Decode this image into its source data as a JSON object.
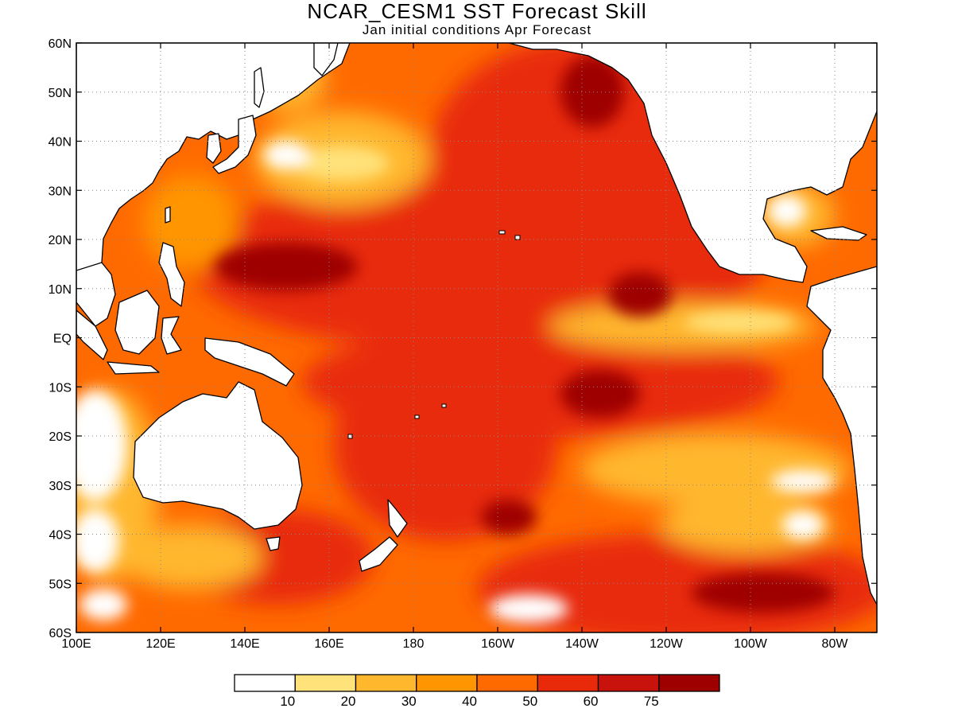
{
  "title": "NCAR_CESM1 SST Forecast Skill",
  "subtitle": "Jan initial conditions  Apr Forecast",
  "map": {
    "lon_range": [
      100,
      290
    ],
    "lat_range": [
      -60,
      60
    ],
    "lon_ticks": [
      {
        "value": 100,
        "label": "100E"
      },
      {
        "value": 120,
        "label": "120E"
      },
      {
        "value": 140,
        "label": "140E"
      },
      {
        "value": 160,
        "label": "160E"
      },
      {
        "value": 180,
        "label": "180"
      },
      {
        "value": 200,
        "label": "160W"
      },
      {
        "value": 220,
        "label": "140W"
      },
      {
        "value": 240,
        "label": "120W"
      },
      {
        "value": 260,
        "label": "100W"
      },
      {
        "value": 280,
        "label": "80W"
      }
    ],
    "lat_ticks": [
      {
        "value": 60,
        "label": "60N"
      },
      {
        "value": 50,
        "label": "50N"
      },
      {
        "value": 40,
        "label": "40N"
      },
      {
        "value": 30,
        "label": "30N"
      },
      {
        "value": 20,
        "label": "20N"
      },
      {
        "value": 10,
        "label": "10N"
      },
      {
        "value": 0,
        "label": "EQ"
      },
      {
        "value": -10,
        "label": "10S"
      },
      {
        "value": -20,
        "label": "20S"
      },
      {
        "value": -30,
        "label": "30S"
      },
      {
        "value": -40,
        "label": "40S"
      },
      {
        "value": -50,
        "label": "50S"
      },
      {
        "value": -60,
        "label": "60S"
      }
    ],
    "grid": true
  },
  "colorbar": {
    "colors": [
      "#ffffff",
      "#ffe27a",
      "#ffb72e",
      "#ff9500",
      "#ff6a00",
      "#e8290a",
      "#c8120c",
      "#9e0000"
    ],
    "labels": [
      "10",
      "20",
      "30",
      "40",
      "50",
      "60",
      "75"
    ]
  },
  "skill_regions": [
    {
      "name": "north-pacific-core",
      "lon": 225,
      "lat": 48,
      "level": 7
    },
    {
      "name": "central-north-pacific",
      "lon": 195,
      "lat": 40,
      "level": 6
    },
    {
      "name": "west-tropical-max",
      "lon": 147,
      "lat": 14,
      "level": 7
    },
    {
      "name": "east-north-tropical-max",
      "lon": 233,
      "lat": 9,
      "level": 7
    },
    {
      "name": "southeast-tropical-max",
      "lon": 218,
      "lat": -12,
      "level": 7
    },
    {
      "name": "south-central-max",
      "lon": 200,
      "lat": -37,
      "level": 7
    },
    {
      "name": "southeast-pacific-max",
      "lon": 262,
      "lat": -53,
      "level": 7
    },
    {
      "name": "low-skill-mid-north",
      "lon": 170,
      "lat": 36,
      "level": 1
    },
    {
      "name": "low-skill-east-equatorial",
      "lon": 258,
      "lat": 2,
      "level": 1
    },
    {
      "name": "low-skill-indian-ocean",
      "lon": 106,
      "lat": -25,
      "level": 0
    },
    {
      "name": "low-skill-south-pacific",
      "lon": 206,
      "lat": -55,
      "level": 0
    }
  ]
}
